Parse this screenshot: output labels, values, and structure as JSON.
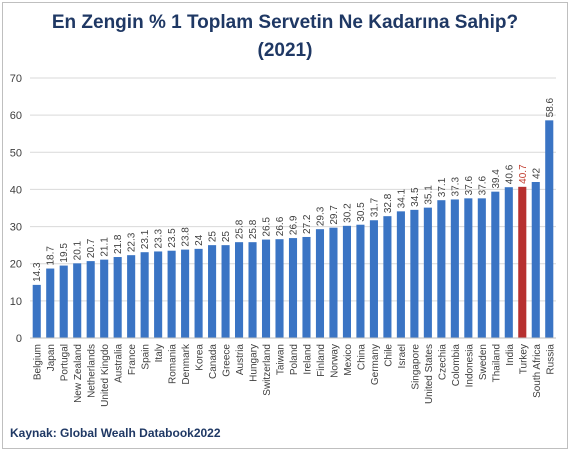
{
  "chart_data": {
    "type": "bar",
    "title": "En Zengin % 1 Toplam Servetin Ne Kadarına Sahip?",
    "subtitle": "(2021)",
    "source": "Kaynak: Global Wealh Databook2022",
    "categories": [
      "Belgium",
      "Japan",
      "Portugal",
      "New Zealand",
      "Netherlands",
      "United Kingdo",
      "Australia",
      "France",
      "Spain",
      "Italy",
      "Romania",
      "Denmark",
      "Korea",
      "Canada",
      "Greece",
      "Austria",
      "Hungary",
      "Switzerland",
      "Taiwan",
      "Poland",
      "Ireland",
      "Finland",
      "Norway",
      "Mexico",
      "China",
      "Germany",
      "Chile",
      "Israel",
      "Singapore",
      "United States",
      "Czechia",
      "Colombia",
      "Indonesia",
      "Sweden",
      "Thailand",
      "India",
      "Turkey",
      "South Africa",
      "Russia"
    ],
    "values": [
      14.3,
      18.7,
      19.5,
      20.1,
      20.7,
      21.1,
      21.8,
      22.3,
      23.1,
      23.3,
      23.5,
      23.8,
      24,
      25,
      25,
      25.8,
      25.8,
      26.5,
      26.6,
      26.9,
      27.2,
      29.3,
      29.7,
      30.2,
      30.5,
      31.7,
      32.8,
      34.1,
      34.5,
      35.1,
      37.1,
      37.3,
      37.6,
      37.6,
      39.4,
      40.6,
      40.7,
      42,
      58.6
    ],
    "data_labels": [
      "14.3",
      "18.7",
      "19.5",
      "20.1",
      "20.7",
      "21.1",
      "21.8",
      "22.3",
      "23.1",
      "23.3",
      "23.5",
      "23.8",
      "24",
      "25",
      "25",
      "25.8",
      "25.8",
      "26.5",
      "26.6",
      "26.9",
      "27.2",
      "29.3",
      "29.7",
      "30.2",
      "30.5",
      "31.7",
      "32.8",
      "34.1",
      "34.5",
      "35.1",
      "37.1",
      "37.3",
      "37.6",
      "37.6",
      "39.4",
      "40.6",
      "40.7",
      "42",
      "58.6"
    ],
    "highlight": "Turkey",
    "ylim": [
      0,
      70
    ],
    "yticks": [
      "0",
      "10",
      "20",
      "30",
      "40",
      "50",
      "60",
      "70"
    ],
    "grid": true,
    "colors": {
      "bar": "#3a74c4",
      "highlight": "#b7302f",
      "highlight_label": "#c0392b",
      "title": "#1f3864",
      "grid": "#d9d9d9",
      "axis_text": "#404040"
    }
  }
}
